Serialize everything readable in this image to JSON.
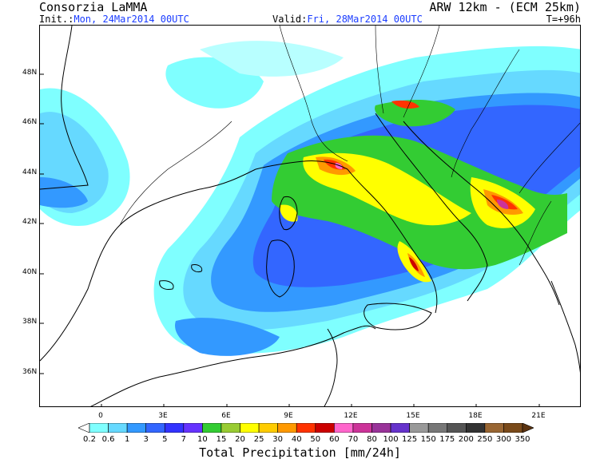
{
  "header": {
    "org": "Consorzia LaMMA",
    "model": "ARW 12km - (ECM 25km)",
    "init_label": "Init.:",
    "init_value": "Mon, 24Mar2014 00UTC",
    "valid_label": "Valid:",
    "valid_value": "Fri, 28Mar2014 00UTC",
    "step": "T=+96h"
  },
  "map": {
    "lat_labels": [
      "48N",
      "46N",
      "44N",
      "42N",
      "40N",
      "38N",
      "36N"
    ],
    "lon_labels": [
      "0",
      "3E",
      "6E",
      "9E",
      "12E",
      "15E",
      "18E",
      "21E"
    ]
  },
  "colorbar": {
    "title": "Total Precipitation [mm/24h]",
    "levels": [
      "0.2",
      "0.6",
      "1",
      "3",
      "5",
      "7",
      "10",
      "15",
      "20",
      "25",
      "30",
      "40",
      "50",
      "60",
      "70",
      "80",
      "100",
      "125",
      "150",
      "175",
      "200",
      "250",
      "300",
      "350"
    ],
    "colors": [
      "#ffffff",
      "#7fffff",
      "#66d9ff",
      "#3399ff",
      "#3366ff",
      "#3333ff",
      "#6633ff",
      "#33cc33",
      "#99cc33",
      "#ffff00",
      "#ffcc00",
      "#ff9900",
      "#ff3300",
      "#cc0000",
      "#ff66cc",
      "#cc3399",
      "#993399",
      "#6633cc",
      "#999999",
      "#777777",
      "#555555",
      "#333333",
      "#996633",
      "#7a4a1a",
      "#5c3310"
    ]
  }
}
